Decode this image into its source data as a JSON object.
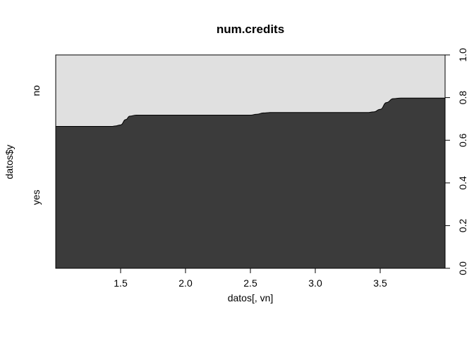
{
  "chart_data": {
    "type": "area",
    "subtype": "spineplot (conditional density)",
    "title": "num.credits",
    "xlabel": "datos[, vn]",
    "ylabel": "datos$y",
    "xlim": [
      1,
      4
    ],
    "ylim": [
      0,
      1
    ],
    "x_ticks": [
      "1.5",
      "2.0",
      "2.5",
      "3.0",
      "3.5"
    ],
    "x_tick_values": [
      1.5,
      2.0,
      2.5,
      3.0,
      3.5
    ],
    "y_ticks_right": [
      "0.0",
      "0.2",
      "0.4",
      "0.6",
      "0.8",
      "1.0"
    ],
    "y_tick_values": [
      0.0,
      0.2,
      0.4,
      0.6,
      0.8,
      1.0
    ],
    "left_category_labels": [
      "no",
      "yes"
    ],
    "series": [
      {
        "name": "yes",
        "color": "#3b3b3b",
        "x": [
          1.0,
          1.4,
          1.43,
          1.46,
          1.5,
          1.54,
          1.57,
          1.62,
          1.7,
          2.0,
          2.4,
          2.5,
          2.55,
          2.6,
          2.65,
          3.0,
          3.4,
          3.45,
          3.5,
          3.55,
          3.6,
          3.66,
          3.8,
          4.0
        ],
        "values": [
          0.665,
          0.665,
          0.665,
          0.667,
          0.672,
          0.697,
          0.713,
          0.718,
          0.718,
          0.718,
          0.718,
          0.718,
          0.722,
          0.728,
          0.73,
          0.73,
          0.73,
          0.733,
          0.745,
          0.777,
          0.795,
          0.798,
          0.798,
          0.798
        ]
      },
      {
        "name": "no",
        "color": "#e0e0e0"
      }
    ],
    "grid": false,
    "legend": "none"
  }
}
